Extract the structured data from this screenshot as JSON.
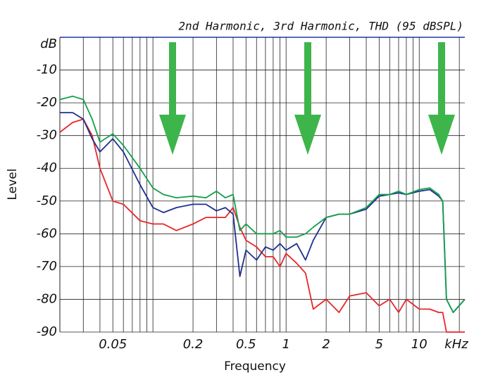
{
  "chart_data": {
    "type": "line",
    "title": "2nd Harmonic, 3rd Harmonic, THD (95 dBSPL)",
    "x_label": "Frequency",
    "y_label": "Level",
    "x_unit": "kHz",
    "log_x": true,
    "grid": true,
    "x": [
      0.02,
      0.025,
      0.03,
      0.035,
      0.04,
      0.05,
      0.06,
      0.08,
      0.1,
      0.12,
      0.15,
      0.2,
      0.25,
      0.3,
      0.35,
      0.4,
      0.45,
      0.5,
      0.6,
      0.7,
      0.8,
      0.9,
      1,
      1.2,
      1.4,
      1.6,
      2,
      2.5,
      3,
      4,
      5,
      6,
      7,
      8,
      10,
      12,
      14,
      15,
      16,
      18,
      22
    ],
    "series": [
      {
        "color": "#e8262a",
        "values": [
          -29,
          -26,
          -25,
          -30,
          -40,
          -50,
          -51,
          -56,
          -57,
          -57,
          -59,
          -57,
          -55,
          -55,
          -55,
          -52,
          -58,
          -62,
          -64,
          -67,
          -67,
          -70,
          -66,
          -69,
          -72,
          -83,
          -80,
          -84,
          -79,
          -78,
          -82,
          -80,
          -84,
          -80,
          -83,
          -83,
          -84,
          -84,
          -90,
          -90,
          -90
        ]
      },
      {
        "color": "#1f2f8f",
        "values": [
          -23,
          -23,
          -25,
          -31,
          -35,
          -31,
          -35,
          -45,
          -52,
          -53.5,
          -52,
          -51,
          -51,
          -53,
          -52,
          -54,
          -73,
          -65,
          -68,
          -64,
          -65,
          -63,
          -65,
          -63,
          -68,
          -62,
          -55,
          -54,
          -54,
          -52.5,
          -48.5,
          -48,
          -47.5,
          -48,
          -47,
          -46.5,
          -48.5,
          -50,
          -80,
          -84,
          -80
        ]
      },
      {
        "color": "#12a04a",
        "values": [
          -19,
          -18,
          -19,
          -25,
          -32,
          -29.5,
          -33,
          -40,
          -46,
          -48,
          -49,
          -48.5,
          -49,
          -47,
          -49,
          -48,
          -59,
          -57,
          -60,
          -60,
          -60,
          -59,
          -61,
          -61,
          -60,
          -58,
          -55,
          -54,
          -54,
          -52,
          -48,
          -48,
          -47,
          -48,
          -46.5,
          -46,
          -48,
          -50,
          -80,
          -84,
          -80
        ]
      }
    ],
    "xlim": [
      0.02,
      22
    ],
    "xticks": [
      0.05,
      0.2,
      0.5,
      1,
      2,
      5,
      10
    ],
    "x_gridlines": [
      0.03,
      0.04,
      0.05,
      0.06,
      0.07,
      0.08,
      0.09,
      0.1,
      0.2,
      0.3,
      0.4,
      0.5,
      0.6,
      0.7,
      0.8,
      0.9,
      1,
      2,
      3,
      4,
      5,
      6,
      7,
      8,
      9,
      10,
      20
    ],
    "ylim": [
      -90,
      0
    ],
    "yticks": [
      -90,
      -80,
      -70,
      -60,
      -50,
      -40,
      -30,
      -20,
      -10,
      {
        "value": 0,
        "label": "dB"
      }
    ]
  }
}
